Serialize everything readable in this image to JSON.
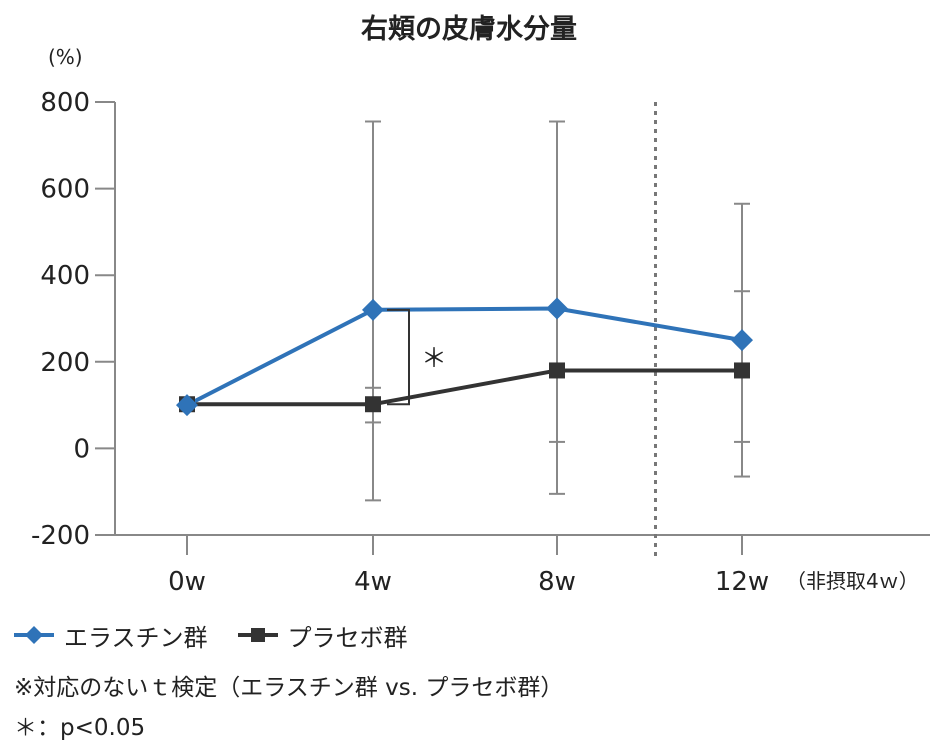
{
  "chart_data": {
    "type": "line",
    "title": "右頬の皮膚水分量",
    "ylabel": "(%)",
    "categories": [
      "0w",
      "4w",
      "8w",
      "12w"
    ],
    "category_note": "（非摂取4ｗ）",
    "ylim": [
      -200,
      800
    ],
    "yticks": [
      "800",
      "600",
      "400",
      "200",
      "0",
      "-200"
    ],
    "grid": false,
    "series": [
      {
        "name": "エラスチン群",
        "color": "#2f73b8",
        "marker": "diamond",
        "values": [
          100,
          320,
          323,
          250
        ],
        "err_upper": [
          100,
          755,
          755,
          565
        ],
        "err_lower": [
          100,
          -120,
          15,
          15
        ]
      },
      {
        "name": "プラセボ群",
        "color": "#333333",
        "marker": "square",
        "values": [
          102,
          102,
          180,
          180
        ],
        "err_upper": [
          102,
          140,
          755,
          363
        ],
        "err_lower": [
          102,
          60,
          -105,
          -65
        ]
      }
    ],
    "annotations": [
      {
        "text": "＊",
        "between": [
          320,
          102
        ],
        "category": "4w"
      }
    ],
    "separator_after_category": "8w",
    "legend_position": "bottom-left"
  },
  "footnotes": {
    "test": "※対応のないｔ検定（エラスチン群 vs. プラセボ群）",
    "significance": "＊：p<0.05"
  }
}
